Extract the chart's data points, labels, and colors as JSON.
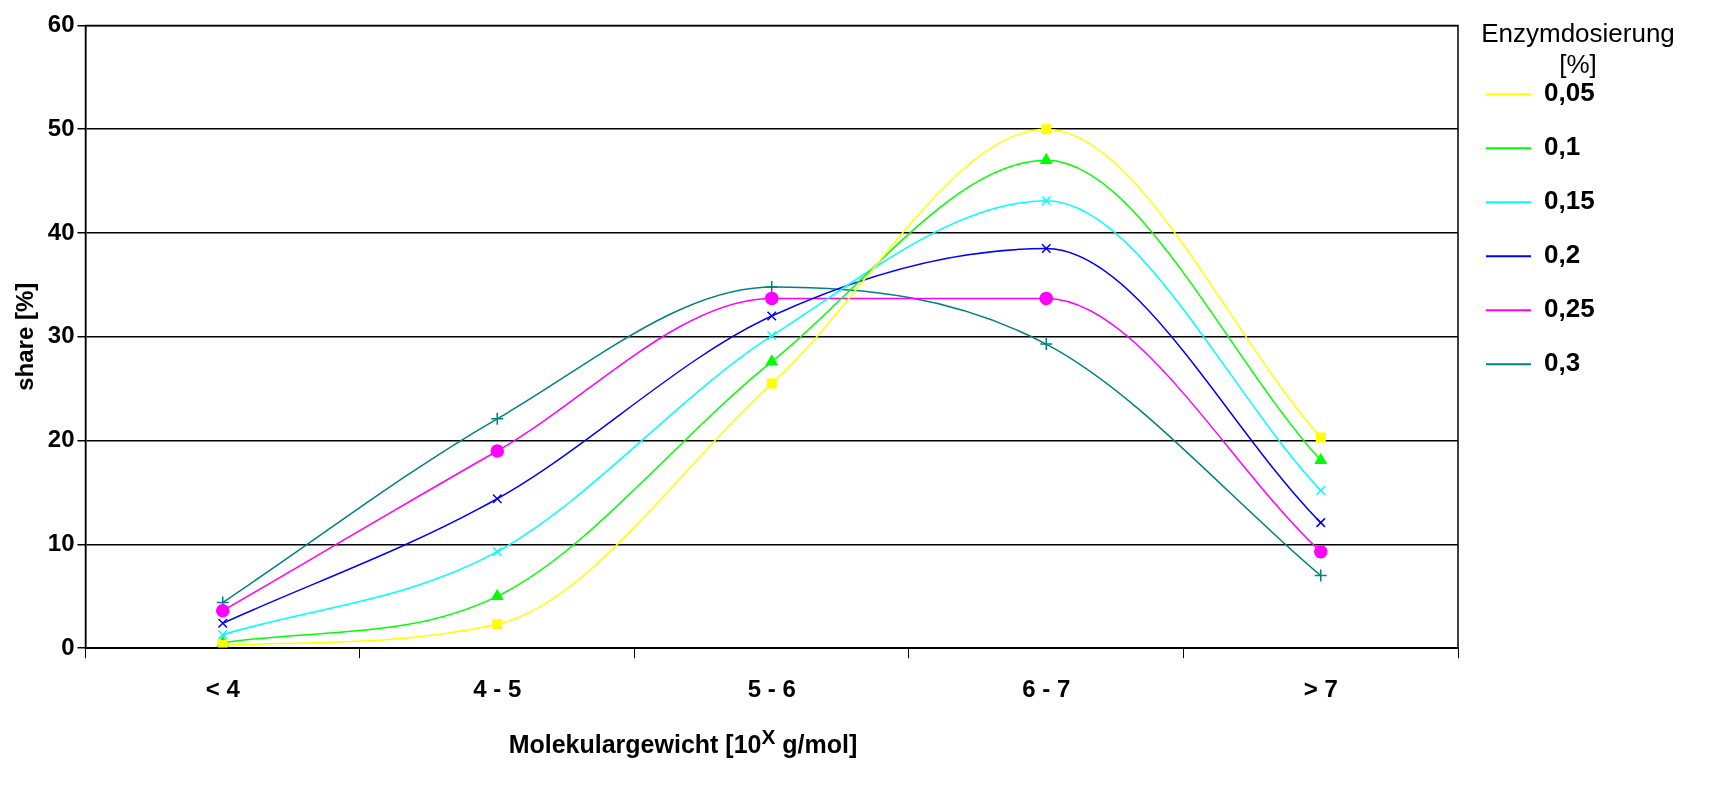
{
  "chart_data": {
    "type": "line",
    "xlabel": "Molekulargewicht [10$^{X}$ g/mol]",
    "ylabel": "share [%]",
    "legend_title": "Enzymdosierung [%]",
    "categories": [
      "< 4",
      "4 - 5",
      "5 - 6",
      "6 - 7",
      "> 7"
    ],
    "ylim": [
      0,
      60
    ],
    "yticks": [
      0,
      10,
      20,
      30,
      40,
      50,
      60
    ],
    "grid": "y",
    "legend": "right",
    "series": [
      {
        "name": "0,05",
        "color": "#ffff00",
        "marker": "square",
        "values": [
          0.3,
          2.3,
          25.5,
          50.0,
          20.3
        ]
      },
      {
        "name": "0,1",
        "color": "#00ff00",
        "marker": "triangle",
        "values": [
          0.5,
          5.0,
          27.6,
          47.0,
          18.1
        ]
      },
      {
        "name": "0,15",
        "color": "#00ffff",
        "marker": "cross",
        "values": [
          1.3,
          9.3,
          30.1,
          43.1,
          15.2
        ]
      },
      {
        "name": "0,2",
        "color": "#0000ff",
        "marker": "cross",
        "values": [
          2.4,
          14.4,
          32.0,
          38.5,
          12.1
        ]
      },
      {
        "name": "0,25",
        "color": "#ff00ff",
        "marker": "circle",
        "values": [
          3.6,
          19.0,
          33.7,
          33.7,
          9.3
        ]
      },
      {
        "name": "0,3",
        "color": "#008080",
        "marker": "plus",
        "values": [
          4.4,
          22.1,
          34.8,
          29.3,
          7.0
        ]
      }
    ]
  }
}
